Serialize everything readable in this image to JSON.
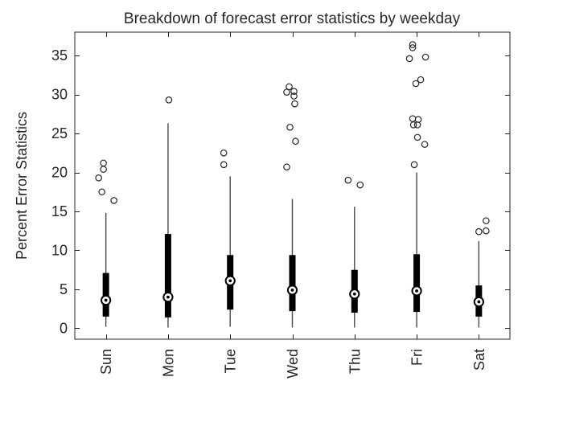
{
  "chart_data": {
    "type": "boxplot",
    "title": "Breakdown of forecast error statistics by weekday",
    "ylabel": "Percent Error Statistics",
    "xlabel": "",
    "categories": [
      "Sun",
      "Mon",
      "Tue",
      "Wed",
      "Thu",
      "Fri",
      "Sat"
    ],
    "yticks": [
      0,
      5,
      10,
      15,
      20,
      25,
      30,
      35
    ],
    "ylim": [
      -1.4,
      38
    ],
    "grid": false,
    "x_tick_rotation_deg": 90,
    "box_style": "compact-filled",
    "series": [
      {
        "category": "Sun",
        "whisker_low": 0.2,
        "q1": 1.5,
        "median": 3.6,
        "q3": 7.1,
        "whisker_high": 14.8,
        "outliers": [
          16.4,
          17.5,
          19.3,
          20.4,
          21.2
        ],
        "outlier_dx": [
          10,
          -5,
          -9,
          -3,
          -3
        ]
      },
      {
        "category": "Mon",
        "whisker_low": 0.1,
        "q1": 1.4,
        "median": 4.0,
        "q3": 12.1,
        "whisker_high": 26.3,
        "outliers": [
          29.3
        ],
        "outlier_dx": [
          1
        ]
      },
      {
        "category": "Tue",
        "whisker_low": 0.2,
        "q1": 2.4,
        "median": 6.1,
        "q3": 9.4,
        "whisker_high": 19.5,
        "outliers": [
          21.0,
          22.5
        ],
        "outlier_dx": [
          -8,
          -8
        ]
      },
      {
        "category": "Wed",
        "whisker_low": 0.1,
        "q1": 2.2,
        "median": 4.9,
        "q3": 9.4,
        "whisker_high": 16.6,
        "outliers": [
          20.7,
          24.0,
          25.8,
          28.8,
          29.8,
          30.3,
          30.4,
          31.0
        ],
        "outlier_dx": [
          -7,
          4,
          -3,
          3,
          2,
          -7,
          2,
          -4
        ]
      },
      {
        "category": "Thu",
        "whisker_low": 0.1,
        "q1": 2.0,
        "median": 4.4,
        "q3": 7.5,
        "whisker_high": 15.6,
        "outliers": [
          18.4,
          19.0
        ],
        "outlier_dx": [
          7,
          -8
        ]
      },
      {
        "category": "Fri",
        "whisker_low": 0.1,
        "q1": 2.1,
        "median": 4.8,
        "q3": 9.5,
        "whisker_high": 20.0,
        "outliers": [
          21.0,
          23.6,
          24.5,
          26.1,
          26.1,
          26.8,
          26.9,
          31.4,
          31.9,
          34.6,
          34.8,
          36.0,
          36.4
        ],
        "outlier_dx": [
          -3,
          10,
          1,
          -4,
          1,
          2,
          -5,
          -1,
          5,
          -9,
          11,
          -5,
          -5
        ]
      },
      {
        "category": "Sat",
        "whisker_low": 0.1,
        "q1": 1.5,
        "median": 3.4,
        "q3": 5.5,
        "whisker_high": 11.2,
        "outliers": [
          12.4,
          12.5,
          13.8
        ],
        "outlier_dx": [
          0,
          9,
          9
        ]
      }
    ],
    "colors": {
      "background": "#ffffff",
      "axis": "#262626",
      "text": "#262626",
      "box_fill": "#000000",
      "whisker": "#4a4a4a",
      "median_ring": "#000000",
      "median_fill": "#ffffff",
      "outlier_stroke": "#262626"
    }
  }
}
